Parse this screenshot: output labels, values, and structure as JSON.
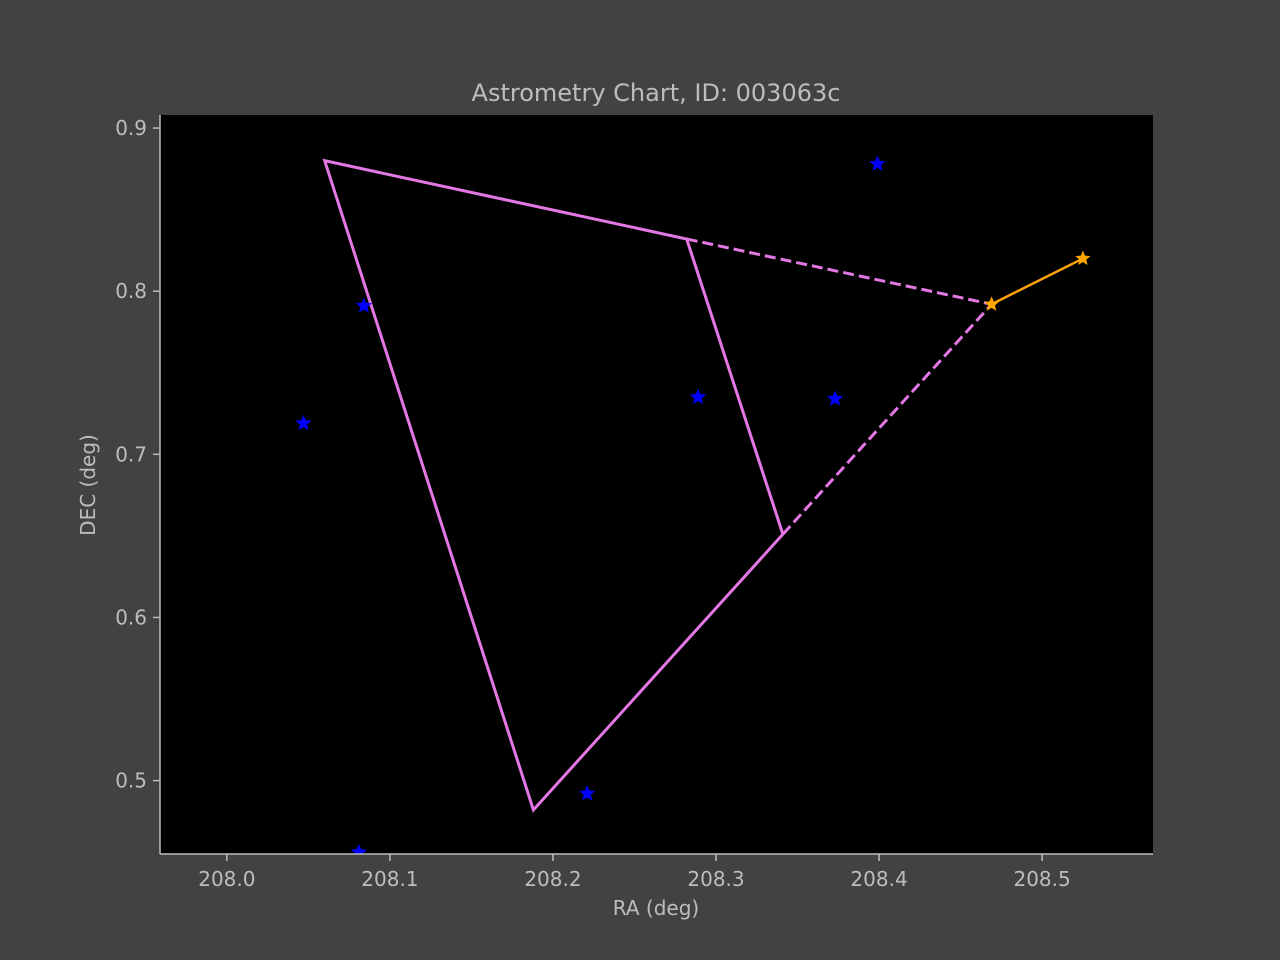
{
  "chart_data": {
    "type": "scatter",
    "title": "Astrometry Chart, ID: 003063c",
    "xlabel": "RA (deg)",
    "ylabel": "DEC (deg)",
    "xlim": [
      207.959,
      208.568
    ],
    "ylim": [
      0.455,
      0.908
    ],
    "xticks": [
      208.0,
      208.1,
      208.2,
      208.3,
      208.4,
      208.5
    ],
    "xtick_labels": [
      "208.0",
      "208.1",
      "208.2",
      "208.3",
      "208.4",
      "208.5"
    ],
    "yticks": [
      0.5,
      0.6,
      0.7,
      0.8,
      0.9
    ],
    "ytick_labels": [
      "0.5",
      "0.6",
      "0.7",
      "0.8",
      "0.9"
    ],
    "grid": false,
    "colors": {
      "background": "#424242",
      "plot_area": "#000000",
      "axes": "#bdbdbd",
      "stars": "#0000ff",
      "outline": "#e377e3",
      "track": "#ffa500"
    },
    "stars": [
      {
        "ra": 208.084,
        "dec": 0.791
      },
      {
        "ra": 208.047,
        "dec": 0.719
      },
      {
        "ra": 208.289,
        "dec": 0.735
      },
      {
        "ra": 208.373,
        "dec": 0.734
      },
      {
        "ra": 208.399,
        "dec": 0.878
      },
      {
        "ra": 208.221,
        "dec": 0.492
      },
      {
        "ra": 208.081,
        "dec": 0.456
      }
    ],
    "field_outline_solid": [
      [
        [
          208.341,
          0.651
        ],
        [
          208.188,
          0.482
        ],
        [
          208.06,
          0.88
        ],
        [
          208.282,
          0.832
        ],
        [
          208.341,
          0.651
        ]
      ]
    ],
    "field_outline_dashed": [
      [
        [
          208.282,
          0.832
        ],
        [
          208.469,
          0.792
        ]
      ],
      [
        [
          208.341,
          0.651
        ],
        [
          208.469,
          0.792
        ]
      ]
    ],
    "track": [
      {
        "ra": 208.469,
        "dec": 0.792
      },
      {
        "ra": 208.525,
        "dec": 0.82
      }
    ]
  }
}
